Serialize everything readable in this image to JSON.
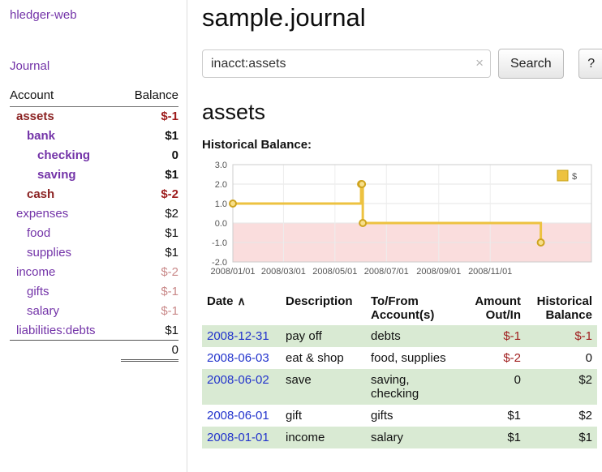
{
  "app_title": "hledger-web",
  "sidebar": {
    "journal_link": "Journal",
    "accounts_table": {
      "col_account": "Account",
      "col_balance": "Balance",
      "rows": [
        {
          "name": "assets",
          "balance": "$-1"
        },
        {
          "name": "bank",
          "balance": "$1"
        },
        {
          "name": "checking",
          "balance": "0"
        },
        {
          "name": "saving",
          "balance": "$1"
        },
        {
          "name": "cash",
          "balance": "$-2"
        },
        {
          "name": "expenses",
          "balance": "$2"
        },
        {
          "name": "food",
          "balance": "$1"
        },
        {
          "name": "supplies",
          "balance": "$1"
        },
        {
          "name": "income",
          "balance": "$-2"
        },
        {
          "name": "gifts",
          "balance": "$-1"
        },
        {
          "name": "salary",
          "balance": "$-1"
        },
        {
          "name": "liabilities:debts",
          "balance": "$1"
        }
      ],
      "total": "0"
    }
  },
  "main": {
    "page_title": "sample.journal",
    "search": {
      "value": "inacct:assets",
      "clear_icon": "×",
      "search_button": "Search",
      "help_button": "?"
    },
    "account_heading": "assets",
    "chart_title": "Historical Balance:"
  },
  "chart_data": {
    "type": "line",
    "title": "Historical Balance:",
    "series": [
      {
        "name": "$",
        "color": "#edc240",
        "step": true,
        "points": [
          {
            "date": "2008-01-01",
            "value": 1
          },
          {
            "date": "2008-06-01",
            "value": 2
          },
          {
            "date": "2008-06-02",
            "value": 2
          },
          {
            "date": "2008-06-03",
            "value": 0
          },
          {
            "date": "2008-12-31",
            "value": -1
          }
        ]
      }
    ],
    "ylim": [
      -2.0,
      3.0
    ],
    "y_ticks": [
      3.0,
      2.0,
      1.0,
      0.0,
      -1.0,
      -2.0
    ],
    "x_ticks": [
      "2008/01/01",
      "2008/03/01",
      "2008/05/01",
      "2008/07/01",
      "2008/09/01",
      "2008/11/01"
    ],
    "xlim": [
      "2008-01-01",
      "2009-03-01"
    ],
    "legend": {
      "label": "$",
      "position": "top-right"
    },
    "grid": true,
    "negative_zone_color": "#fadddd"
  },
  "register": {
    "headers": {
      "date": "Date",
      "sort_indicator": "∧",
      "description": "Description",
      "account": "To/From Account(s)",
      "amount": "Amount Out/In",
      "balance": "Historical Balance"
    },
    "rows": [
      {
        "date": "2008-12-31",
        "description": "pay off",
        "account": "debts",
        "amount": "$-1",
        "balance": "$-1"
      },
      {
        "date": "2008-06-03",
        "description": "eat & shop",
        "account": "food, supplies",
        "amount": "$-2",
        "balance": "0"
      },
      {
        "date": "2008-06-02",
        "description": "save",
        "account": "saving, checking",
        "amount": "0",
        "balance": "$2"
      },
      {
        "date": "2008-06-01",
        "description": "gift",
        "account": "gifts",
        "amount": "$1",
        "balance": "$2"
      },
      {
        "date": "2008-01-01",
        "description": "income",
        "account": "salary",
        "amount": "$1",
        "balance": "$1"
      }
    ]
  },
  "colors": {
    "link_purple": "#7333a8",
    "account_negative_name": "#8b2222",
    "negative_strong": "#9d1b1b",
    "negative_faded": "#c98989",
    "date_link_blue": "#2233cc",
    "row_green": "#d9ead3",
    "chart_line": "#edc240"
  }
}
